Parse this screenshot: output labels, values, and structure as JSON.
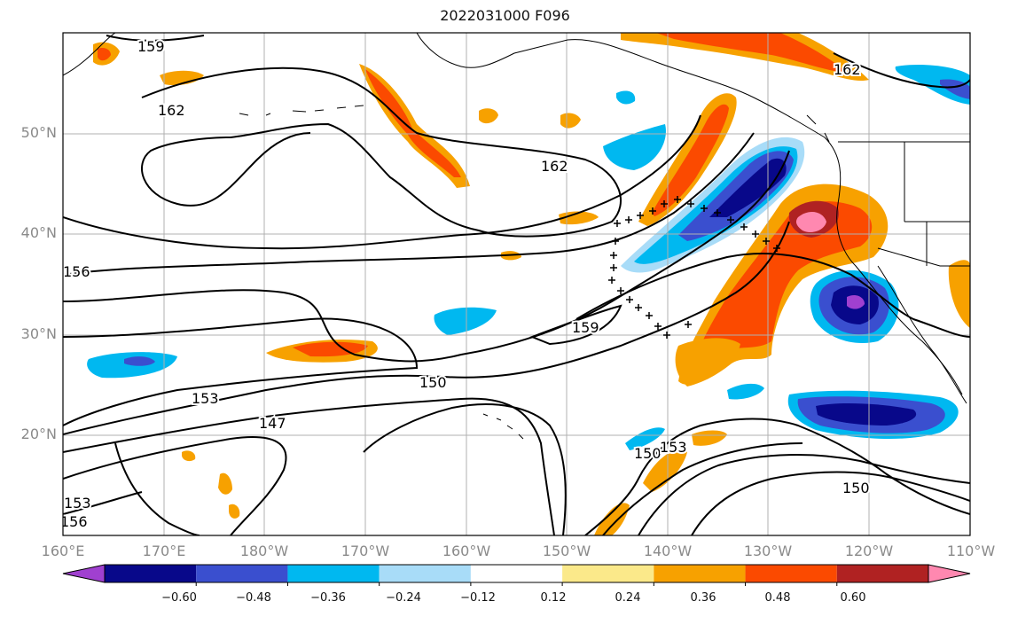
{
  "title": "2022031000 F096",
  "lat_labels": [
    "50°N",
    "40°N",
    "30°N",
    "20°N"
  ],
  "lon_labels": [
    "160°E",
    "170°E",
    "180°W",
    "170°W",
    "160°W",
    "150°W",
    "140°W",
    "130°W",
    "120°W",
    "110°W"
  ],
  "contour_labels": [
    "159",
    "162",
    "162",
    "162",
    "156",
    "153",
    "150",
    "147",
    "159",
    "150",
    "153",
    "150",
    "153",
    "156"
  ],
  "colorbar": {
    "ticks": [
      "−0.60",
      "−0.48",
      "−0.36",
      "−0.24",
      "−0.12",
      "0.12",
      "0.24",
      "0.36",
      "0.48",
      "0.60"
    ],
    "colors": [
      "#a040d0",
      "#08088a",
      "#3a4fcf",
      "#00b8f0",
      "#a8dcf8",
      "#ffffff",
      "#fbe98a",
      "#f7a100",
      "#fb4a00",
      "#b02222",
      "#ff88b0"
    ]
  },
  "colors": {
    "contour": "#000000",
    "grid": "#b0b0b0",
    "coast": "#000000"
  }
}
